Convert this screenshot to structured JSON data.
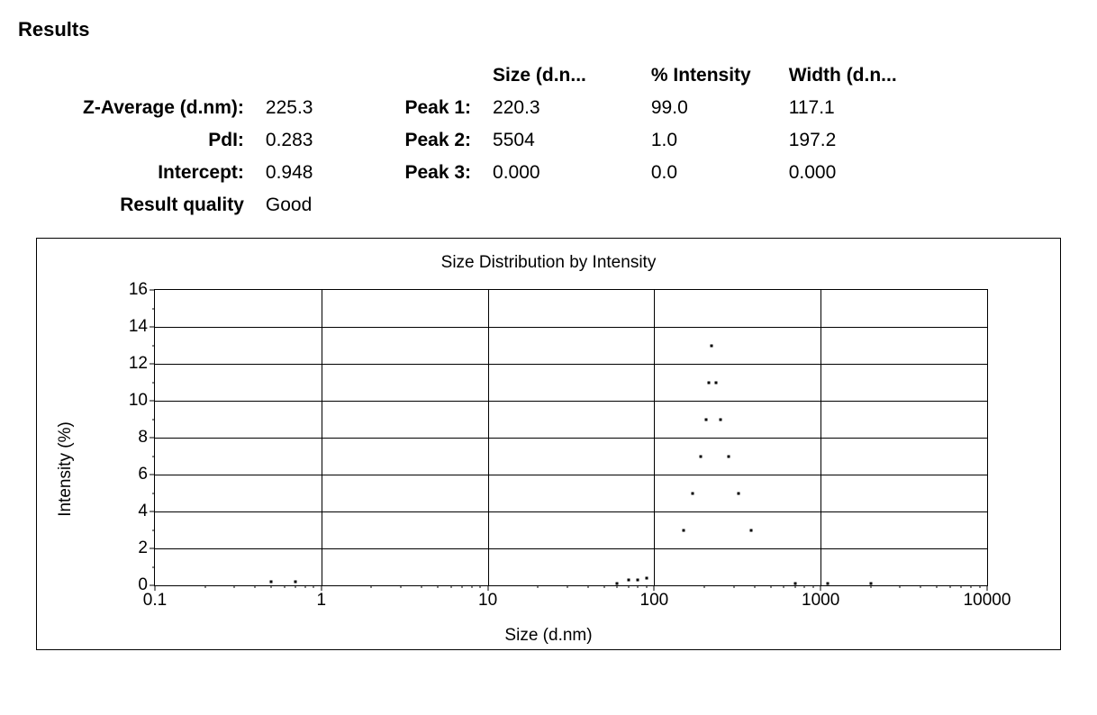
{
  "title": "Results",
  "summary": {
    "labels": {
      "z_average": "Z-Average (d.nm):",
      "pdi": "PdI:",
      "intercept": "Intercept:",
      "result_quality": "Result quality"
    },
    "values": {
      "z_average": "225.3",
      "pdi": "0.283",
      "intercept": "0.948",
      "result_quality": "Good"
    }
  },
  "peaks": {
    "column_headers": {
      "size": "Size (d.n...",
      "intensity": "% Intensity",
      "width": "Width (d.n..."
    },
    "rows": [
      {
        "label": "Peak 1:",
        "size": "220.3",
        "intensity": "99.0",
        "width": "117.1"
      },
      {
        "label": "Peak 2:",
        "size": "5504",
        "intensity": "1.0",
        "width": "197.2"
      },
      {
        "label": "Peak 3:",
        "size": "0.000",
        "intensity": "0.0",
        "width": "0.000"
      }
    ]
  },
  "chart": {
    "type": "line",
    "title": "Size Distribution by Intensity",
    "xlabel": "Size (d.nm)",
    "ylabel": "Intensity (%)",
    "x_scale": "log",
    "xlim_log10": [
      -1,
      4
    ],
    "ylim": [
      0,
      16
    ],
    "ytick_step": 2,
    "ytick_labels_even": [
      0,
      2,
      4,
      6,
      8,
      10,
      12,
      14,
      16
    ],
    "y_minor_odd": [
      1,
      3,
      5,
      7,
      9,
      11,
      13,
      15
    ],
    "xtick_values": [
      0.1,
      1,
      10,
      100,
      1000,
      10000
    ],
    "xtick_labels": [
      "0.1",
      "1",
      "10",
      "100",
      "1000",
      "10000"
    ],
    "grid_linewidth": 1,
    "grid_color": "#000000",
    "border_color": "#000000",
    "background_color": "#ffffff",
    "series": [
      {
        "name": "distribution",
        "marker": "dot",
        "marker_size": 3,
        "color": "#000000",
        "points": [
          {
            "x": 0.5,
            "y": 0.2
          },
          {
            "x": 0.7,
            "y": 0.2
          },
          {
            "x": 60,
            "y": 0.1
          },
          {
            "x": 70,
            "y": 0.3
          },
          {
            "x": 80,
            "y": 0.3
          },
          {
            "x": 90,
            "y": 0.4
          },
          {
            "x": 150,
            "y": 3.0
          },
          {
            "x": 170,
            "y": 5.0
          },
          {
            "x": 190,
            "y": 7.0
          },
          {
            "x": 205,
            "y": 9.0
          },
          {
            "x": 212,
            "y": 11.0
          },
          {
            "x": 220,
            "y": 13.0
          },
          {
            "x": 235,
            "y": 11.0
          },
          {
            "x": 250,
            "y": 9.0
          },
          {
            "x": 280,
            "y": 7.0
          },
          {
            "x": 320,
            "y": 5.0
          },
          {
            "x": 380,
            "y": 3.0
          },
          {
            "x": 700,
            "y": 0.1
          },
          {
            "x": 1100,
            "y": 0.1
          },
          {
            "x": 2000,
            "y": 0.1
          }
        ]
      }
    ]
  }
}
